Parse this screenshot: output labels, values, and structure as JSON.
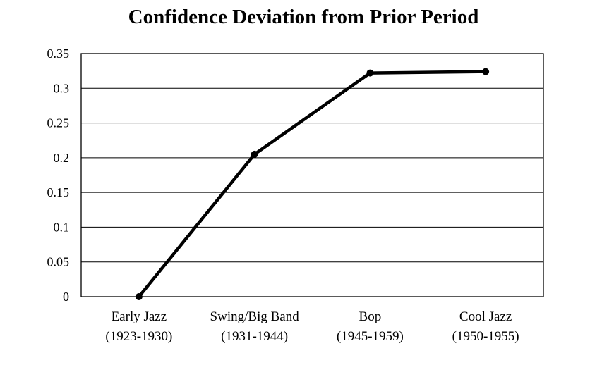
{
  "chart_data": {
    "type": "line",
    "title": "Confidence Deviation from Prior Period",
    "xlabel": "",
    "ylabel": "",
    "categories": [
      [
        "Early Jazz",
        "(1923-1930)"
      ],
      [
        "Swing/Big Band",
        "(1931-1944)"
      ],
      [
        "Bop",
        "(1945-1959)"
      ],
      [
        "Cool Jazz",
        "(1950-1955)"
      ]
    ],
    "values": [
      0,
      0.205,
      0.322,
      0.324
    ],
    "ylim": [
      0,
      0.35
    ],
    "yticks": [
      "0",
      "0.05",
      "0.1",
      "0.15",
      "0.2",
      "0.25",
      "0.3",
      "0.35"
    ],
    "grid": true,
    "legend": "none",
    "line_color": "#000000"
  }
}
